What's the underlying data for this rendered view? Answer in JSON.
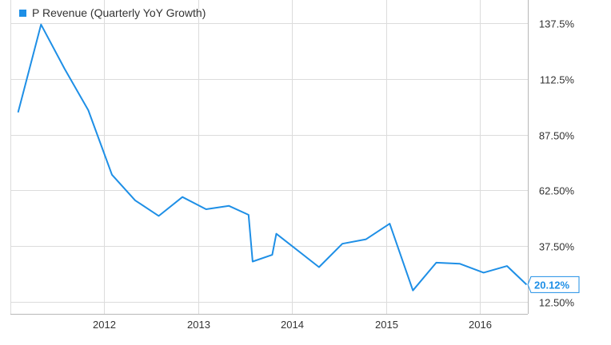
{
  "chart_data": {
    "type": "line",
    "series": [
      {
        "name": "P Revenue (Quarterly YoY Growth)",
        "color": "#1e8fe6",
        "x": [
          "2011-01-31",
          "2011-04-30",
          "2011-07-31",
          "2011-10-31",
          "2012-01-31",
          "2012-04-30",
          "2012-07-31",
          "2012-10-31",
          "2013-01-31",
          "2013-04-30",
          "2013-07-15",
          "2013-07-31",
          "2013-10-15",
          "2013-10-31",
          "2014-04-15",
          "2014-07-15",
          "2014-10-15",
          "2015-01-15",
          "2015-04-15",
          "2015-07-15",
          "2015-10-15",
          "2016-01-15",
          "2016-04-15",
          "2016-06-30"
        ],
        "values": [
          97.5,
          137.0,
          117.0,
          98.5,
          69.5,
          58.0,
          51.0,
          59.5,
          54.0,
          55.5,
          51.5,
          30.5,
          33.5,
          43.0,
          28.0,
          38.5,
          40.5,
          47.5,
          17.5,
          30.0,
          29.5,
          25.5,
          28.5,
          20.12
        ]
      }
    ],
    "last_value_label": "20.12%",
    "xlim": [
      "2011-01-01",
      "2016-07-05"
    ],
    "x_ticks": [
      "2012",
      "2013",
      "2014",
      "2015",
      "2016"
    ],
    "ylim": [
      7.0,
      148.0
    ],
    "y_ticks": [
      12.5,
      37.5,
      62.5,
      87.5,
      112.5,
      137.5
    ],
    "y_tick_labels": [
      "12.50%",
      "37.50%",
      "62.50%",
      "87.50%",
      "112.5%",
      "137.5%"
    ],
    "y_axis_position": "right",
    "grid": true,
    "legend_position": "top-left",
    "title": "",
    "xlabel": "",
    "ylabel": ""
  }
}
